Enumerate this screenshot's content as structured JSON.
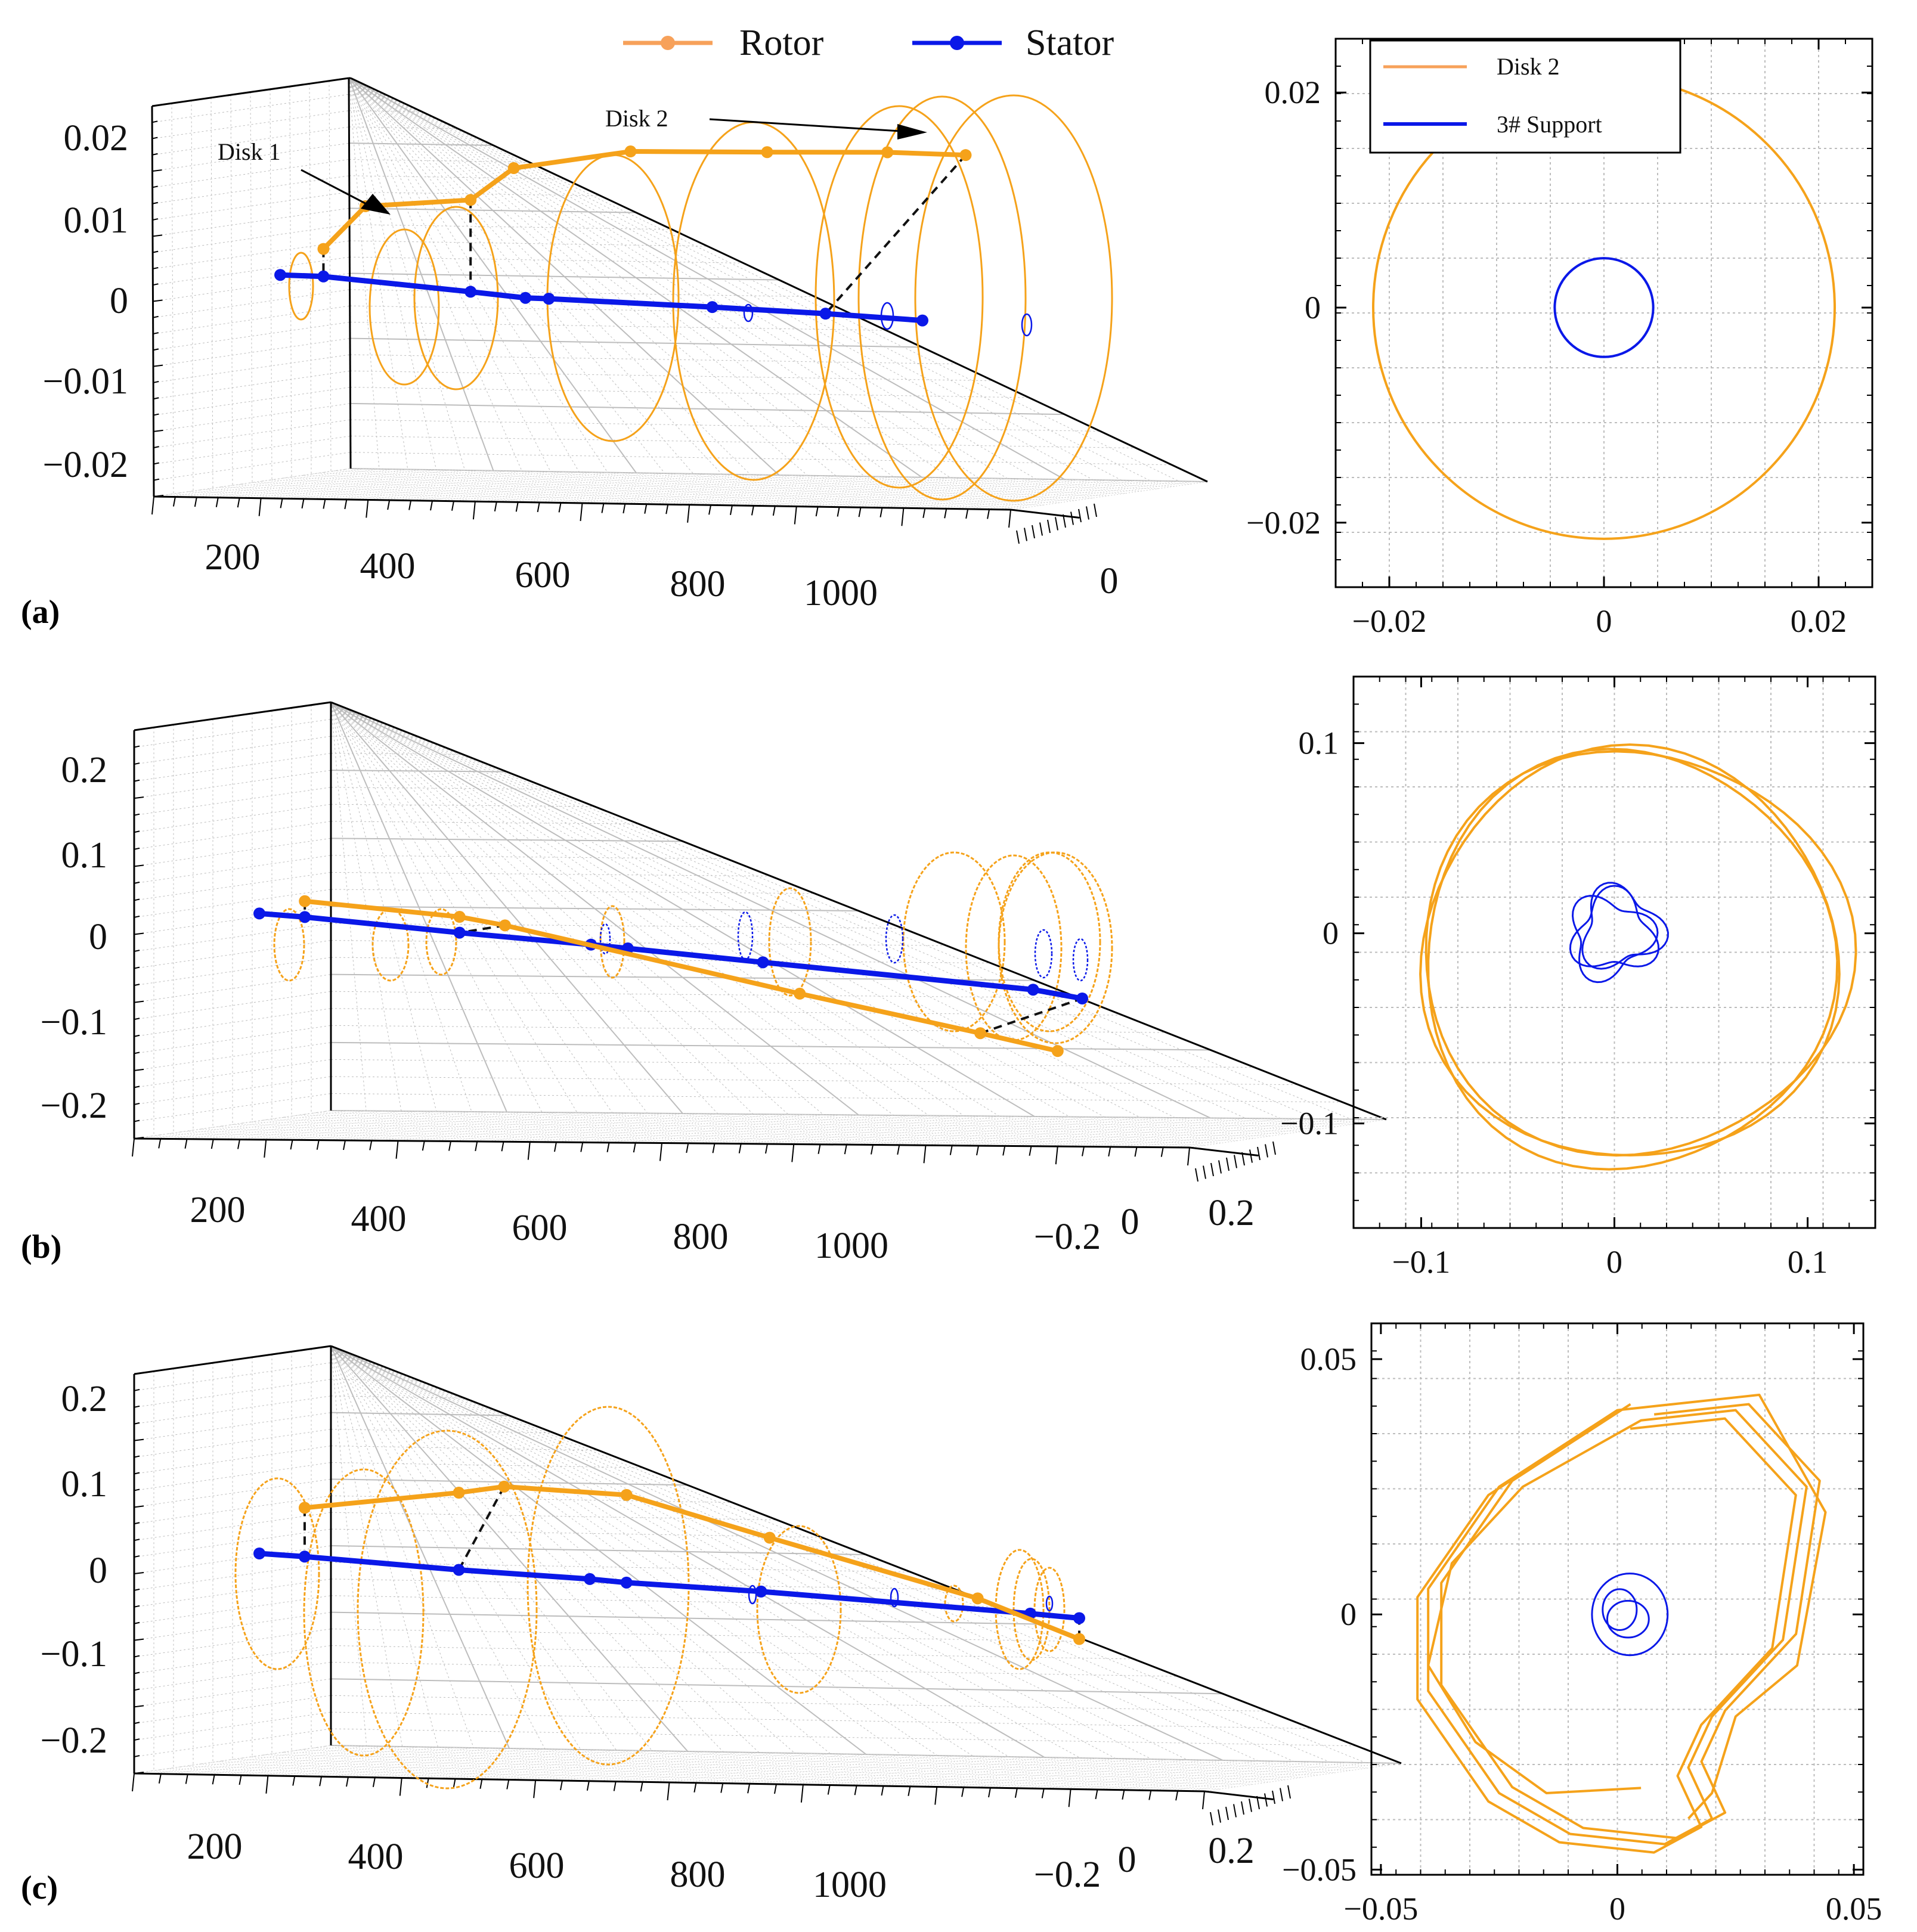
{
  "legend": {
    "rotor": "Rotor",
    "stator": "Stator"
  },
  "colors": {
    "rotor": "#f5a21a",
    "stator": "#0a18e8",
    "rotor_legend": "#f7a15a",
    "grid": "#bdbdbd",
    "link": "#111111"
  },
  "chart_data": [
    {
      "id": "a",
      "label": "(a)",
      "type": "line",
      "x_ticks": [
        "200",
        "400",
        "600",
        "800",
        "1000"
      ],
      "z_ticks": [
        "0.02",
        "0.01",
        "0",
        "−0.01",
        "−0.02"
      ],
      "y_ticks": [
        "0"
      ],
      "annotations": [
        "Disk 1",
        "Disk 2"
      ],
      "series": [
        {
          "name": "Rotor",
          "axial": [
            187,
            223,
            313,
            350,
            450,
            567,
            670,
            737
          ],
          "displacement": [
            0.005,
            0.0103,
            0.0115,
            0.0155,
            0.018,
            0.0185,
            0.019,
            0.019
          ]
        },
        {
          "name": "Stator",
          "axial": [
            150,
            187,
            313,
            360,
            380,
            520,
            617,
            700
          ],
          "displacement": [
            0.0017,
            0.0017,
            0.0005,
            0,
            0,
            -0.0003,
            -0.0006,
            -0.001
          ]
        }
      ]
    },
    {
      "id": "a-orbit",
      "type": "line",
      "title": "",
      "legend": [
        "Disk 2",
        "3# Support"
      ],
      "x_ticks": [
        "−0.02",
        "0",
        "0.02"
      ],
      "y_ticks": [
        "0.02",
        "0",
        "−0.02"
      ],
      "xlim": [
        -0.025,
        0.025
      ],
      "ylim": [
        -0.026,
        0.025
      ],
      "series": [
        {
          "name": "Disk 2",
          "shape": "circle",
          "center": [
            0.0,
            0.0
          ],
          "radius": 0.0215
        },
        {
          "name": "3# Support",
          "shape": "circle",
          "center": [
            0.0,
            0.0
          ],
          "radius": 0.0027
        }
      ]
    },
    {
      "id": "b",
      "label": "(b)",
      "type": "line",
      "x_ticks": [
        "200",
        "400",
        "600",
        "800",
        "1000"
      ],
      "z_ticks": [
        "0.2",
        "0.1",
        "0",
        "−0.1",
        "−0.2"
      ],
      "y_ticks": [
        "−0.2",
        "0",
        "0.2"
      ],
      "series": [
        {
          "name": "Rotor",
          "axial": [
            187,
            313,
            350,
            590,
            737,
            800
          ],
          "displacement": [
            0.055,
            0.043,
            0.03,
            -0.085,
            -0.15,
            -0.18
          ]
        },
        {
          "name": "Stator",
          "axial": [
            150,
            187,
            313,
            420,
            450,
            560,
            780,
            820
          ],
          "displacement": [
            0.018,
            0.017,
            0.005,
            -0.002,
            -0.005,
            -0.016,
            -0.037,
            -0.05
          ]
        }
      ]
    },
    {
      "id": "b-orbit",
      "type": "line",
      "x_ticks": [
        "−0.1",
        "0",
        "0.1"
      ],
      "y_ticks": [
        "0.1",
        "0",
        "−0.1"
      ],
      "xlim": [
        -0.135,
        0.135
      ],
      "ylim": [
        -0.155,
        0.135
      ],
      "series": [
        {
          "name": "Disk 2",
          "shape": "closed-orbit",
          "center": [
            0.008,
            -0.012
          ],
          "radius": 0.108
        },
        {
          "name": "3# Support",
          "shape": "closed-orbit",
          "center": [
            0.0,
            0.0
          ],
          "radius": 0.02
        }
      ]
    },
    {
      "id": "c",
      "label": "(c)",
      "type": "line",
      "x_ticks": [
        "200",
        "400",
        "600",
        "800",
        "1000"
      ],
      "z_ticks": [
        "0.2",
        "0.1",
        "0",
        "−0.1",
        "−0.2"
      ],
      "y_ticks": [
        "−0.2",
        "0",
        "0.2"
      ],
      "series": [
        {
          "name": "Rotor",
          "axial": [
            187,
            313,
            350,
            450,
            567,
            737,
            820
          ],
          "displacement": [
            0.135,
            0.19,
            0.21,
            0.205,
            0.12,
            0.0,
            -0.085
          ]
        },
        {
          "name": "Stator",
          "axial": [
            150,
            187,
            313,
            420,
            450,
            560,
            780,
            820
          ],
          "displacement": [
            0.02,
            0.018,
            0.005,
            -0.001,
            -0.005,
            -0.01,
            -0.03,
            -0.035
          ]
        }
      ]
    },
    {
      "id": "c-orbit",
      "type": "line",
      "x_ticks": [
        "−0.05",
        "0",
        "0.05"
      ],
      "y_ticks": [
        "0.05",
        "0",
        "−0.05"
      ],
      "xlim": [
        -0.052,
        0.052
      ],
      "ylim": [
        -0.051,
        0.057
      ],
      "series": [
        {
          "name": "Disk 2",
          "shape": "open-orbit",
          "x": [
            0.005,
            -0.015,
            -0.03,
            -0.04,
            -0.035,
            -0.02,
            0.005,
            0.025,
            0.04,
            0.035,
            0.02,
            0.015,
            0.02,
            0.01,
            -0.01,
            -0.025,
            -0.04,
            -0.04,
            -0.025,
            0.0,
            0.03,
            0.044,
            0.038,
            0.025,
            0.02,
            0.015
          ],
          "y": [
            -0.034,
            -0.035,
            -0.025,
            -0.01,
            0.01,
            0.025,
            0.038,
            0.04,
            0.025,
            -0.005,
            -0.02,
            -0.03,
            -0.04,
            -0.045,
            -0.043,
            -0.035,
            -0.015,
            0.005,
            0.025,
            0.04,
            0.043,
            0.02,
            -0.01,
            -0.02,
            -0.035,
            -0.04
          ]
        },
        {
          "name": "3# Support",
          "shape": "loops",
          "center": [
            0.002,
            0.0
          ],
          "radius": 0.008
        }
      ]
    }
  ]
}
